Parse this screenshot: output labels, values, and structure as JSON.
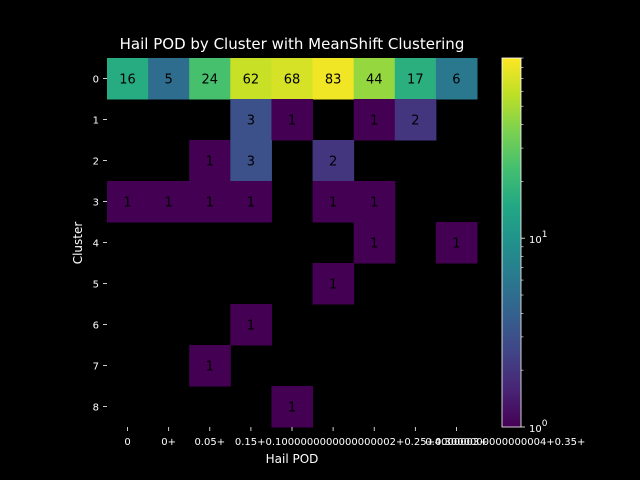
{
  "chart_data": {
    "type": "heatmap",
    "title": "Hail POD by Cluster with MeanShift Clustering",
    "xlabel": "Hail POD",
    "ylabel": "Cluster",
    "x_tick_labels": [
      "0",
      "0+",
      "0.05+",
      "0.15+",
      "0.1+0000000000000002+",
      "0.2+0.25+",
      "0.3000000000000004+",
      "0.35+",
      "0.4+000003+"
    ],
    "x_tick_labels_display": [
      "0",
      "0+",
      "0.05+",
      "0.15+0.1000000000000000002+0.25+0.3000000000000004+0.35+",
      "",
      "",
      "",
      "",
      "0.4000003+"
    ],
    "y_tick_labels": [
      "0",
      "1",
      "2",
      "3",
      "4",
      "5",
      "6",
      "7",
      "8"
    ],
    "values": [
      [
        16,
        5,
        24,
        62,
        68,
        83,
        44,
        17,
        6
      ],
      [
        null,
        null,
        null,
        3,
        1,
        null,
        1,
        2,
        null
      ],
      [
        null,
        null,
        1,
        3,
        null,
        2,
        null,
        null,
        null
      ],
      [
        1,
        1,
        1,
        1,
        null,
        1,
        1,
        null,
        null
      ],
      [
        null,
        null,
        null,
        null,
        null,
        null,
        1,
        null,
        1
      ],
      [
        null,
        null,
        null,
        null,
        null,
        1,
        null,
        null,
        null
      ],
      [
        null,
        null,
        null,
        1,
        null,
        null,
        null,
        null,
        null
      ],
      [
        null,
        null,
        1,
        null,
        null,
        null,
        null,
        null,
        null
      ],
      [
        null,
        null,
        null,
        null,
        1,
        null,
        null,
        null,
        null
      ]
    ],
    "colormap": "viridis",
    "color_scale": "log",
    "colorbar_range": [
      1,
      90
    ],
    "colorbar_tick_labels": [
      "10^0",
      "10^1"
    ],
    "colorbar_ticks": [
      1,
      10
    ],
    "missing_color": "#000000",
    "grid": false,
    "legend": "colorbar-right"
  }
}
